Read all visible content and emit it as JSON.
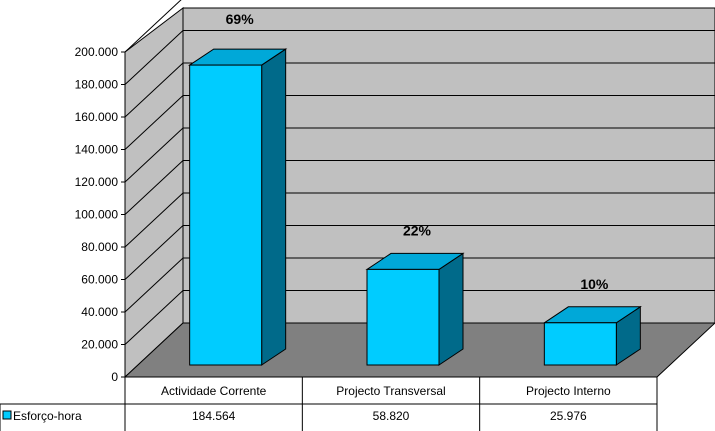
{
  "chart_data": {
    "type": "bar",
    "categories": [
      "Actividade Corrente",
      "Projecto Transversal",
      "Projecto Interno"
    ],
    "series": [
      {
        "name": "Esforço-hora",
        "values": [
          184564,
          58820,
          25976
        ]
      }
    ],
    "value_labels": [
      "184.564",
      "58.820",
      "25.976"
    ],
    "percent_labels": [
      "69%",
      "22%",
      "10%"
    ],
    "yticks": [
      "0",
      "20.000",
      "40.000",
      "60.000",
      "80.000",
      "100.000",
      "120.000",
      "140.000",
      "160.000",
      "180.000",
      "200.000"
    ],
    "ylim": [
      0,
      200000
    ],
    "grid": true,
    "three_d": true,
    "data_table": true,
    "legend_position": "data-table-left",
    "colors": {
      "bar_front": "#00ccff",
      "bar_top": "#00a8d8",
      "bar_side": "#006a8a",
      "back_wall": "#c0c0c0",
      "floor": "#808080"
    }
  }
}
